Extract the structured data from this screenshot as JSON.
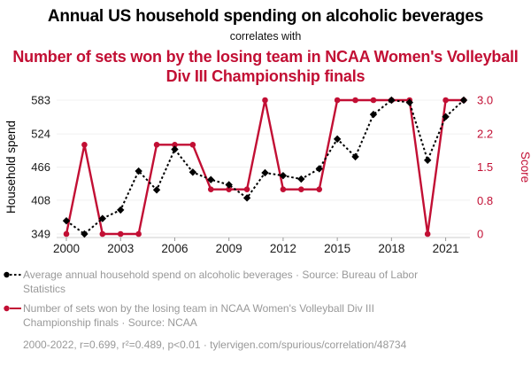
{
  "page": {
    "title": "Annual US household spending on alcoholic beverages",
    "subtitle": "correlates with",
    "title2": "Number of sets won by the losing team in NCAA Women's Volleyball Div III Championship finals",
    "footer": "2000-2022, r=0.699, r²=0.489, p<0.01 · tylervigen.com/spurious/correlation/48734"
  },
  "colors": {
    "title_accent": "#c20f34",
    "series_black": "#000000",
    "series_red": "#c20f34",
    "legend_text": "#999999",
    "grid": "#f0f0f0",
    "axis_line": "#cccccc",
    "tick_mark": "#999999",
    "tick_text": "#1a1a1a"
  },
  "legend": [
    {
      "label": "Average annual household spend on alcoholic beverages · Source: Bureau of Labor Statistics",
      "marker": "black-dashed-dot"
    },
    {
      "label": "Number of sets won by the losing team in NCAA Women's Volleyball Div III Championship finals · Source: NCAA",
      "marker": "red-solid-dot"
    }
  ],
  "chart_data": {
    "type": "line",
    "title": "Annual US household spending on alcoholic beverages",
    "subtitle": "correlates with",
    "title2": "Number of sets won by the losing team in NCAA Women's Volleyball Div III Championship finals",
    "x": [
      2000,
      2001,
      2002,
      2003,
      2004,
      2005,
      2006,
      2007,
      2008,
      2009,
      2010,
      2011,
      2012,
      2013,
      2014,
      2015,
      2016,
      2017,
      2018,
      2019,
      2020,
      2021,
      2022
    ],
    "x_ticks": [
      2000,
      2003,
      2006,
      2009,
      2012,
      2015,
      2018,
      2021
    ],
    "series": [
      {
        "name": "Average annual household spend on alcoholic beverages",
        "source": "Bureau of Labor Statistics",
        "axis": "left",
        "color": "#000000",
        "line_style": "dashed",
        "marker": "diamond",
        "values": [
          372,
          349,
          376,
          391,
          459,
          426,
          497,
          457,
          444,
          435,
          412,
          456,
          451,
          445,
          463,
          515,
          484,
          558,
          583,
          579,
          478,
          554,
          583
        ]
      },
      {
        "name": "Number of sets won by the losing team in NCAA Women's Volleyball Div III Championship finals",
        "source": "NCAA",
        "axis": "right",
        "color": "#c20f34",
        "line_style": "solid",
        "marker": "circle",
        "values": [
          0,
          2,
          0,
          0,
          0,
          2,
          2,
          2,
          1,
          1,
          1,
          3,
          1,
          1,
          1,
          3,
          3,
          3,
          3,
          3,
          0,
          3,
          3
        ]
      }
    ],
    "left_axis": {
      "label": "Household spend",
      "range": [
        349,
        583
      ],
      "ticks": [
        349,
        408,
        466,
        524,
        583
      ]
    },
    "right_axis": {
      "label": "Score",
      "range": [
        0,
        3
      ],
      "ticks": [
        {
          "value": 0,
          "label": "0"
        },
        {
          "value": 0.75,
          "label": "0.8"
        },
        {
          "value": 1.5,
          "label": "1.5"
        },
        {
          "value": 2.25,
          "label": "2.2"
        },
        {
          "value": 3,
          "label": "3.0"
        }
      ]
    },
    "grid": "horizontal",
    "legend_position": "below"
  }
}
